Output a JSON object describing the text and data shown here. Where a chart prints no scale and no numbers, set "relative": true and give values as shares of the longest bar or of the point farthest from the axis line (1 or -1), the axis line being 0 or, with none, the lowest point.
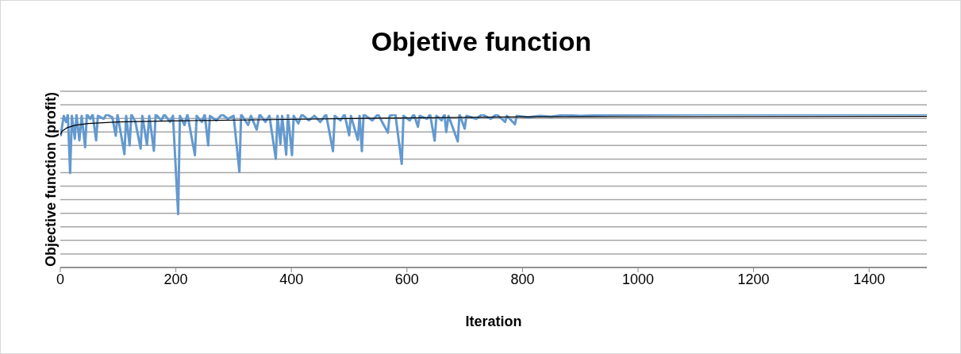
{
  "chart_data": {
    "type": "line",
    "title": "Objetive function",
    "xlabel": "Iteration",
    "ylabel": "Objective function (profit)",
    "relative": true,
    "grid": "y",
    "xlim": [
      0,
      1500
    ],
    "xticks": [
      0,
      200,
      400,
      600,
      800,
      1000,
      1200,
      1400
    ],
    "series": [
      {
        "color": "#6399cf",
        "x": [
          0,
          1,
          3,
          6,
          10,
          13,
          17,
          20,
          25,
          28,
          33,
          37,
          43,
          46,
          52,
          56,
          62,
          65,
          75,
          80,
          90,
          96,
          99,
          111,
          114,
          120,
          123,
          130,
          139,
          142,
          150,
          154,
          162,
          165,
          175,
          180,
          190,
          195,
          204,
          207,
          215,
          220,
          233,
          236,
          245,
          250,
          256,
          259,
          270,
          280,
          290,
          300,
          310,
          313,
          325,
          330,
          340,
          345,
          355,
          362,
          373,
          376,
          381,
          384,
          391,
          394,
          401,
          404,
          412,
          418,
          430,
          440,
          450,
          460,
          472,
          475,
          485,
          492,
          500,
          503,
          515,
          518,
          522,
          525,
          540,
          550,
          567,
          570,
          580,
          591,
          594,
          605,
          612,
          619,
          622,
          635,
          640,
          648,
          651,
          660,
          665,
          668,
          672,
          688,
          691,
          700,
          703,
          720,
          730,
          745,
          755,
          770,
          773,
          787,
          790,
          810,
          830,
          850,
          870,
          900,
          950,
          1000,
          1100,
          1200,
          1300,
          1400,
          1500
        ],
        "values": [
          0.86,
          0.863,
          0.92,
          0.99,
          0.95,
          1.0,
          0.617,
          0.99,
          0.84,
          1.0,
          0.83,
          0.99,
          0.785,
          1.0,
          0.97,
          1.0,
          0.83,
          0.99,
          0.97,
          1.0,
          0.98,
          0.86,
          1.0,
          0.74,
          0.99,
          0.797,
          1.0,
          0.95,
          0.776,
          0.99,
          0.8,
          0.99,
          0.762,
          1.0,
          0.96,
          1.0,
          0.95,
          0.99,
          0.348,
          0.99,
          0.93,
          1.0,
          0.733,
          0.99,
          0.95,
          1.0,
          0.797,
          0.99,
          0.96,
          1.0,
          0.97,
          0.99,
          0.624,
          1.0,
          0.93,
          0.99,
          0.9,
          1.0,
          0.95,
          0.99,
          0.71,
          0.99,
          0.806,
          0.99,
          0.736,
          1.0,
          0.733,
          0.99,
          0.94,
          1.0,
          0.96,
          0.99,
          0.95,
          1.0,
          0.759,
          0.99,
          0.96,
          1.0,
          0.863,
          0.99,
          0.832,
          0.99,
          0.759,
          1.0,
          0.96,
          1.0,
          0.88,
          0.99,
          1.0,
          0.676,
          0.99,
          0.96,
          1.0,
          0.918,
          0.99,
          0.97,
          1.0,
          0.828,
          0.99,
          0.96,
          1.0,
          0.884,
          0.99,
          0.823,
          1.0,
          0.906,
          0.99,
          0.97,
          1.0,
          0.97,
          1.0,
          0.95,
          0.99,
          0.935,
          0.99,
          0.98,
          0.99,
          0.985,
          0.995,
          0.99,
          0.995,
          0.998,
          1.0,
          1.0,
          1.0,
          1.0,
          1.0
        ]
      },
      {
        "type": "line",
        "color": "#000000",
        "x": [
          0,
          3,
          11,
          25,
          48,
          100,
          208,
          364,
          550,
          776,
          1000,
          1250,
          1500
        ],
        "values": [
          0.866,
          0.89,
          0.911,
          0.928,
          0.94,
          0.95,
          0.958,
          0.965,
          0.975,
          0.982,
          0.984,
          0.985,
          0.986
        ]
      }
    ]
  }
}
